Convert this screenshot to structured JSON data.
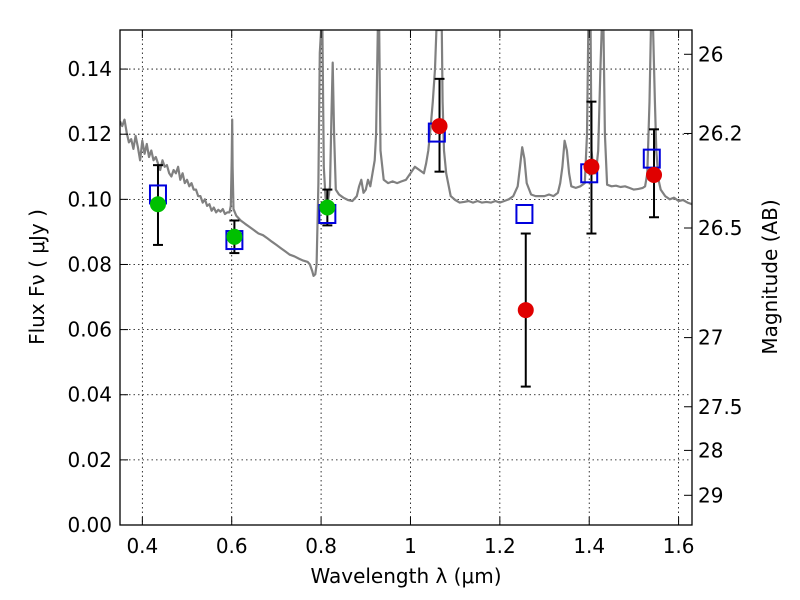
{
  "chart_data": {
    "type": "scatter",
    "xlabel": "Wavelength  λ (μm)",
    "ylabel": "Flux  Fν  ( μJy )",
    "ylabel_right": "Magnitude (AB)",
    "xlim": [
      0.35,
      1.63
    ],
    "ylim": [
      0.0,
      0.152
    ],
    "grid": "dotted",
    "x_ticks": [
      0.4,
      0.6,
      0.8,
      1.0,
      1.2,
      1.4,
      1.6
    ],
    "x_tick_labels": [
      "0.4",
      "0.6",
      "0.8",
      "1",
      "1.2",
      "1.4",
      "1.6"
    ],
    "y_ticks": [
      0.0,
      0.02,
      0.04,
      0.06,
      0.08,
      0.1,
      0.12,
      0.14
    ],
    "y_tick_labels": [
      "0.00",
      "0.02",
      "0.04",
      "0.06",
      "0.08",
      "0.10",
      "0.12",
      "0.14"
    ],
    "mag_ticks": [
      26,
      26.2,
      26.5,
      27,
      27.5,
      28,
      29
    ],
    "mag_tick_labels": [
      "26",
      "26.2",
      "26.5",
      "27",
      "27.5",
      "28",
      "29"
    ],
    "colors": {
      "spectrum": "#808080",
      "optical_points": "#00c000",
      "nir_points": "#e00000",
      "model_boxes": "#0000dd",
      "errorbars": "#000000"
    },
    "model_fluxes": [
      {
        "x": 0.435,
        "y": 0.1015
      },
      {
        "x": 0.606,
        "y": 0.0875
      },
      {
        "x": 0.814,
        "y": 0.0955
      },
      {
        "x": 1.059,
        "y": 0.1205
      },
      {
        "x": 1.255,
        "y": 0.0955
      },
      {
        "x": 1.4,
        "y": 0.108
      },
      {
        "x": 1.54,
        "y": 0.1125
      }
    ],
    "series": [
      {
        "points": [
          {
            "x": 0.435,
            "y": 0.0985,
            "err_low": 0.086,
            "err_high": 0.1105
          },
          {
            "x": 0.606,
            "y": 0.0885,
            "err_low": 0.0835,
            "err_high": 0.0935
          },
          {
            "x": 0.814,
            "y": 0.0975,
            "err_low": 0.092,
            "err_high": 0.103
          }
        ]
      },
      {
        "points": [
          {
            "x": 1.065,
            "y": 0.1225,
            "err_low": 0.1085,
            "err_high": 0.137
          },
          {
            "x": 1.258,
            "y": 0.066,
            "err_low": 0.0425,
            "err_high": 0.0895
          },
          {
            "x": 1.405,
            "y": 0.11,
            "err_low": 0.0895,
            "err_high": 0.13
          },
          {
            "x": 1.545,
            "y": 0.1075,
            "err_low": 0.0945,
            "err_high": 0.1215
          }
        ]
      }
    ],
    "spectrum": [
      [
        0.35,
        0.124
      ],
      [
        0.355,
        0.1225
      ],
      [
        0.36,
        0.1245
      ],
      [
        0.365,
        0.1205
      ],
      [
        0.37,
        0.1175
      ],
      [
        0.375,
        0.1185
      ],
      [
        0.38,
        0.1155
      ],
      [
        0.385,
        0.1195
      ],
      [
        0.39,
        0.116
      ],
      [
        0.395,
        0.112
      ],
      [
        0.4,
        0.118
      ],
      [
        0.405,
        0.114
      ],
      [
        0.41,
        0.117
      ],
      [
        0.415,
        0.113
      ],
      [
        0.42,
        0.115
      ],
      [
        0.425,
        0.112
      ],
      [
        0.43,
        0.113
      ],
      [
        0.435,
        0.111
      ],
      [
        0.44,
        0.109
      ],
      [
        0.445,
        0.112
      ],
      [
        0.45,
        0.11
      ],
      [
        0.455,
        0.1105
      ],
      [
        0.46,
        0.108
      ],
      [
        0.465,
        0.107
      ],
      [
        0.47,
        0.109
      ],
      [
        0.475,
        0.108
      ],
      [
        0.48,
        0.11
      ],
      [
        0.485,
        0.106
      ],
      [
        0.49,
        0.108
      ],
      [
        0.495,
        0.105
      ],
      [
        0.5,
        0.106
      ],
      [
        0.505,
        0.104
      ],
      [
        0.51,
        0.105
      ],
      [
        0.515,
        0.103
      ],
      [
        0.52,
        0.103
      ],
      [
        0.525,
        0.101
      ],
      [
        0.53,
        0.101
      ],
      [
        0.535,
        0.099
      ],
      [
        0.54,
        0.1
      ],
      [
        0.545,
        0.098
      ],
      [
        0.55,
        0.0985
      ],
      [
        0.555,
        0.0965
      ],
      [
        0.56,
        0.0975
      ],
      [
        0.565,
        0.096
      ],
      [
        0.57,
        0.0968
      ],
      [
        0.575,
        0.0962
      ],
      [
        0.58,
        0.097
      ],
      [
        0.585,
        0.0955
      ],
      [
        0.59,
        0.096
      ],
      [
        0.595,
        0.096
      ],
      [
        0.598,
        0.098
      ],
      [
        0.6,
        0.112
      ],
      [
        0.601,
        0.1245
      ],
      [
        0.602,
        0.11
      ],
      [
        0.604,
        0.097
      ],
      [
        0.61,
        0.095
      ],
      [
        0.62,
        0.0935
      ],
      [
        0.63,
        0.0925
      ],
      [
        0.64,
        0.0915
      ],
      [
        0.65,
        0.0905
      ],
      [
        0.66,
        0.0895
      ],
      [
        0.67,
        0.089
      ],
      [
        0.68,
        0.088
      ],
      [
        0.69,
        0.087
      ],
      [
        0.7,
        0.086
      ],
      [
        0.71,
        0.085
      ],
      [
        0.72,
        0.084
      ],
      [
        0.73,
        0.083
      ],
      [
        0.74,
        0.0825
      ],
      [
        0.75,
        0.0818
      ],
      [
        0.76,
        0.0812
      ],
      [
        0.77,
        0.0808
      ],
      [
        0.775,
        0.08
      ],
      [
        0.78,
        0.078
      ],
      [
        0.783,
        0.0765
      ],
      [
        0.787,
        0.077
      ],
      [
        0.79,
        0.08
      ],
      [
        0.794,
        0.105
      ],
      [
        0.797,
        0.145
      ],
      [
        0.8,
        0.152
      ],
      [
        0.803,
        0.152
      ],
      [
        0.806,
        0.11
      ],
      [
        0.81,
        0.1
      ],
      [
        0.815,
        0.099
      ],
      [
        0.82,
        0.104
      ],
      [
        0.823,
        0.125
      ],
      [
        0.826,
        0.142
      ],
      [
        0.829,
        0.12
      ],
      [
        0.833,
        0.103
      ],
      [
        0.84,
        0.1015
      ],
      [
        0.85,
        0.1005
      ],
      [
        0.86,
        0.0998
      ],
      [
        0.87,
        0.0995
      ],
      [
        0.88,
        0.101
      ],
      [
        0.885,
        0.104
      ],
      [
        0.89,
        0.106
      ],
      [
        0.895,
        0.102
      ],
      [
        0.9,
        0.103
      ],
      [
        0.905,
        0.106
      ],
      [
        0.91,
        0.104
      ],
      [
        0.915,
        0.108
      ],
      [
        0.92,
        0.112
      ],
      [
        0.923,
        0.12
      ],
      [
        0.927,
        0.152
      ],
      [
        0.93,
        0.152
      ],
      [
        0.933,
        0.115
      ],
      [
        0.94,
        0.106
      ],
      [
        0.95,
        0.105
      ],
      [
        0.96,
        0.1055
      ],
      [
        0.97,
        0.105
      ],
      [
        0.98,
        0.1055
      ],
      [
        0.99,
        0.106
      ],
      [
        1.0,
        0.108
      ],
      [
        1.01,
        0.11
      ],
      [
        1.02,
        0.109
      ],
      [
        1.03,
        0.108
      ],
      [
        1.035,
        0.111
      ],
      [
        1.04,
        0.115
      ],
      [
        1.045,
        0.122
      ],
      [
        1.05,
        0.13
      ],
      [
        1.055,
        0.14
      ],
      [
        1.058,
        0.152
      ],
      [
        1.065,
        0.152
      ],
      [
        1.07,
        0.152
      ],
      [
        1.072,
        0.13
      ],
      [
        1.075,
        0.115
      ],
      [
        1.08,
        0.108
      ],
      [
        1.09,
        0.101
      ],
      [
        1.1,
        0.0998
      ],
      [
        1.11,
        0.099
      ],
      [
        1.12,
        0.0992
      ],
      [
        1.13,
        0.0995
      ],
      [
        1.14,
        0.099
      ],
      [
        1.15,
        0.0995
      ],
      [
        1.16,
        0.099
      ],
      [
        1.17,
        0.0992
      ],
      [
        1.18,
        0.099
      ],
      [
        1.19,
        0.0995
      ],
      [
        1.2,
        0.099
      ],
      [
        1.21,
        0.0995
      ],
      [
        1.22,
        0.1
      ],
      [
        1.23,
        0.101
      ],
      [
        1.24,
        0.104
      ],
      [
        1.245,
        0.11
      ],
      [
        1.25,
        0.116
      ],
      [
        1.255,
        0.1125
      ],
      [
        1.26,
        0.105
      ],
      [
        1.27,
        0.1015
      ],
      [
        1.28,
        0.101
      ],
      [
        1.29,
        0.101
      ],
      [
        1.3,
        0.101
      ],
      [
        1.31,
        0.1015
      ],
      [
        1.32,
        0.101
      ],
      [
        1.33,
        0.102
      ],
      [
        1.335,
        0.105
      ],
      [
        1.34,
        0.11
      ],
      [
        1.345,
        0.118
      ],
      [
        1.35,
        0.115
      ],
      [
        1.355,
        0.108
      ],
      [
        1.36,
        0.104
      ],
      [
        1.37,
        0.1035
      ],
      [
        1.38,
        0.104
      ],
      [
        1.39,
        0.105
      ],
      [
        1.395,
        0.12
      ],
      [
        1.398,
        0.152
      ],
      [
        1.403,
        0.152
      ],
      [
        1.405,
        0.115
      ],
      [
        1.41,
        0.108
      ],
      [
        1.415,
        0.108
      ],
      [
        1.42,
        0.115
      ],
      [
        1.425,
        0.14
      ],
      [
        1.428,
        0.152
      ],
      [
        1.432,
        0.152
      ],
      [
        1.435,
        0.12
      ],
      [
        1.44,
        0.1045
      ],
      [
        1.45,
        0.104
      ],
      [
        1.46,
        0.1042
      ],
      [
        1.47,
        0.1038
      ],
      [
        1.48,
        0.104
      ],
      [
        1.49,
        0.1035
      ],
      [
        1.5,
        0.103
      ],
      [
        1.51,
        0.1032
      ],
      [
        1.52,
        0.1035
      ],
      [
        1.525,
        0.104
      ],
      [
        1.53,
        0.108
      ],
      [
        1.535,
        0.13
      ],
      [
        1.538,
        0.152
      ],
      [
        1.543,
        0.152
      ],
      [
        1.547,
        0.13
      ],
      [
        1.55,
        0.115
      ],
      [
        1.555,
        0.106
      ],
      [
        1.56,
        0.103
      ],
      [
        1.57,
        0.101
      ],
      [
        1.58,
        0.1
      ],
      [
        1.59,
        0.1005
      ],
      [
        1.6,
        0.0995
      ],
      [
        1.61,
        0.0998
      ],
      [
        1.62,
        0.099
      ],
      [
        1.63,
        0.0985
      ]
    ]
  }
}
